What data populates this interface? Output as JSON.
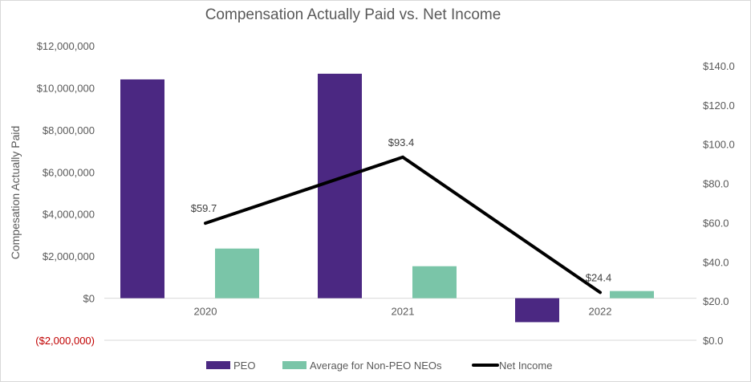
{
  "chart_data": {
    "type": "bar",
    "title": "Compensation Actually Paid vs. Net Income",
    "ylabel": "Compesation Actually Paid",
    "categories": [
      "2020",
      "2021",
      "2022"
    ],
    "series": [
      {
        "name": "PEO",
        "type": "bar",
        "axis": "left",
        "color": "#4b2882",
        "values": [
          10400000,
          10670000,
          -1140000
        ]
      },
      {
        "name": "Average for Non-PEO NEOs",
        "type": "bar",
        "axis": "left",
        "color": "#7ac5a8",
        "values": [
          2360000,
          1520000,
          340000
        ]
      },
      {
        "name": "Net Income",
        "type": "line",
        "axis": "right",
        "color": "#000000",
        "values": [
          59.7,
          93.4,
          24.4
        ],
        "labels": [
          "$59.7",
          "$93.4",
          "$24.4"
        ]
      }
    ],
    "left_axis": {
      "ylim": [
        -2000000,
        12000000
      ],
      "ticks": [
        "($2,000,000)",
        "$0",
        "$2,000,000",
        "$4,000,000",
        "$6,000,000",
        "$8,000,000",
        "$10,000,000",
        "$12,000,000"
      ],
      "tick_values": [
        -2000000,
        0,
        2000000,
        4000000,
        6000000,
        8000000,
        10000000,
        12000000
      ],
      "negative_color": "#c00000"
    },
    "right_axis": {
      "ylim": [
        0,
        140
      ],
      "ticks": [
        "$0.0",
        "$20.0",
        "$40.0",
        "$60.0",
        "$80.0",
        "$100.0",
        "$120.0",
        "$140.0"
      ],
      "tick_values": [
        0,
        20,
        40,
        60,
        80,
        100,
        120,
        140
      ]
    },
    "legend": "bottom"
  }
}
